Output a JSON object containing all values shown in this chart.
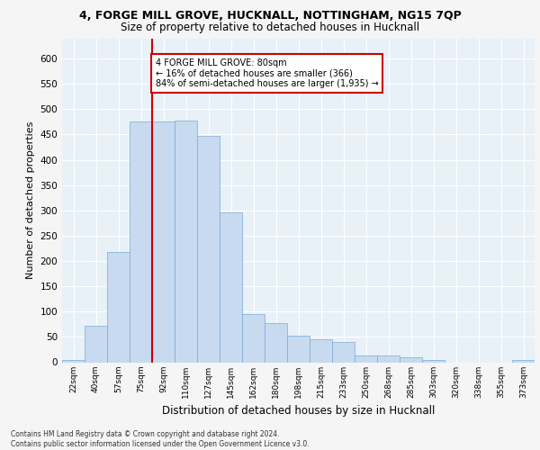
{
  "title_line1": "4, FORGE MILL GROVE, HUCKNALL, NOTTINGHAM, NG15 7QP",
  "title_line2": "Size of property relative to detached houses in Hucknall",
  "xlabel": "Distribution of detached houses by size in Hucknall",
  "ylabel": "Number of detached properties",
  "bar_labels": [
    "22sqm",
    "40sqm",
    "57sqm",
    "75sqm",
    "92sqm",
    "110sqm",
    "127sqm",
    "145sqm",
    "162sqm",
    "180sqm",
    "198sqm",
    "215sqm",
    "233sqm",
    "250sqm",
    "268sqm",
    "285sqm",
    "303sqm",
    "320sqm",
    "338sqm",
    "355sqm",
    "373sqm"
  ],
  "bar_values": [
    5,
    72,
    218,
    475,
    475,
    478,
    448,
    296,
    95,
    78,
    53,
    46,
    40,
    13,
    13,
    10,
    5,
    0,
    0,
    0,
    5
  ],
  "bar_color": "#c8daf0",
  "bar_edge_color": "#7aaad4",
  "property_line_index": 4,
  "annotation_text": "4 FORGE MILL GROVE: 80sqm\n← 16% of detached houses are smaller (366)\n84% of semi-detached houses are larger (1,935) →",
  "annotation_box_color": "#ffffff",
  "annotation_box_edge_color": "#cc0000",
  "line_color": "#cc0000",
  "footer_text": "Contains HM Land Registry data © Crown copyright and database right 2024.\nContains public sector information licensed under the Open Government Licence v3.0.",
  "ylim": [
    0,
    640
  ],
  "yticks": [
    0,
    50,
    100,
    150,
    200,
    250,
    300,
    350,
    400,
    450,
    500,
    550,
    600
  ],
  "background_color": "#e8f0f8",
  "grid_color": "#ffffff",
  "fig_bg_color": "#f5f5f5"
}
